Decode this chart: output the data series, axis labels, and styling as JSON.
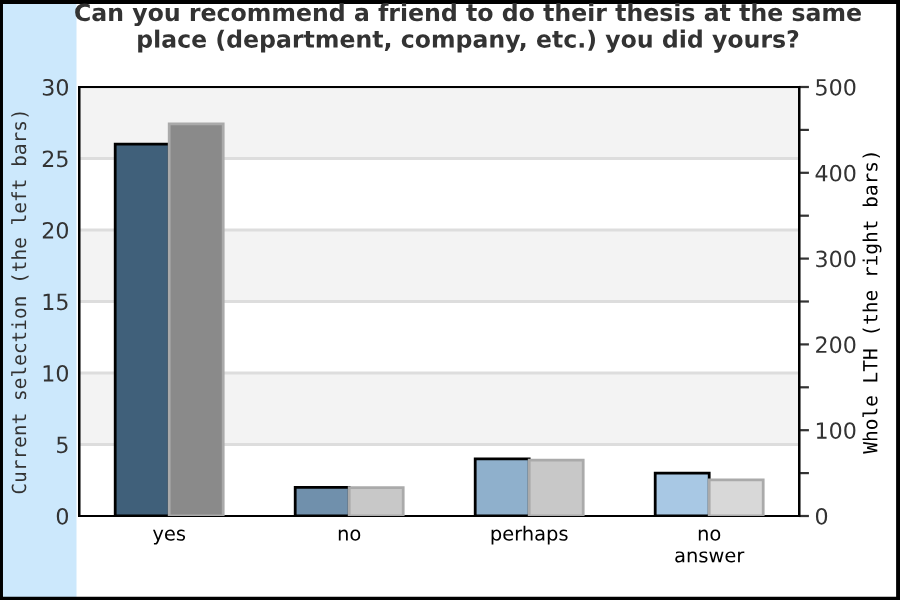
{
  "chart_data": {
    "type": "bar",
    "title": "Can you recommend a friend to do their thesis at the same place (department, company, etc.) you did yours?",
    "categories": [
      "yes",
      "no",
      "perhaps",
      "no\nanswer"
    ],
    "series": [
      {
        "colors": [
          "#40607a",
          "#7090ac",
          "#8fb0cc",
          "#a8c8e4"
        ],
        "values": [
          26,
          2,
          4,
          3
        ]
      },
      {
        "colors": [
          "#8a8a8a",
          "#c8c8c8",
          "#c8c8c8",
          "#d8d8d8"
        ],
        "values": [
          457,
          33,
          65,
          42
        ],
        "axis": "y2"
      }
    ],
    "ylabel": "Current selection (the left bars)",
    "y2label": "Whole LTH (the right bars)",
    "ylim": [
      0,
      30
    ],
    "yticks": [
      0,
      5,
      10,
      15,
      20,
      25,
      30
    ],
    "y2lim": [
      0,
      500
    ],
    "y2ticks": [
      0,
      {
        "value": 50,
        "label": null
      },
      100,
      {
        "value": 150,
        "label": null
      },
      200,
      {
        "value": 250,
        "label": null
      },
      300,
      {
        "value": 350,
        "label": null
      },
      400,
      {
        "value": 450,
        "label": null
      },
      500
    ],
    "grid": "y",
    "legend": false
  }
}
